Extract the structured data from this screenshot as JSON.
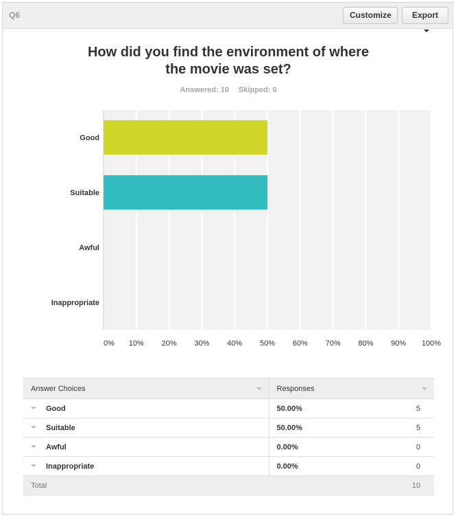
{
  "question": {
    "number": "Q6",
    "title_lines": [
      "How did you find the environment of where",
      "the movie was set?"
    ],
    "answered": "Answered: 10",
    "skipped": "Skipped: 0"
  },
  "toolbar": {
    "customize_label": "Customize",
    "export_label": "Export"
  },
  "chart_data": {
    "type": "bar",
    "orientation": "horizontal",
    "categories": [
      "Good",
      "Suitable",
      "Awful",
      "Inappropriate"
    ],
    "values": [
      50,
      50,
      0,
      0
    ],
    "colors": [
      "#d1d52a",
      "#33bdc0",
      "#f36f24",
      "#8a5ba8"
    ],
    "x_ticks": [
      "0%",
      "10%",
      "20%",
      "30%",
      "40%",
      "50%",
      "60%",
      "70%",
      "80%",
      "90%",
      "100%"
    ],
    "xlim": [
      0,
      100
    ],
    "grid": true
  },
  "table": {
    "headers": [
      "Answer Choices",
      "Responses"
    ],
    "rows": [
      {
        "choice": "Good",
        "percent": "50.00%",
        "count": "5"
      },
      {
        "choice": "Suitable",
        "percent": "50.00%",
        "count": "5"
      },
      {
        "choice": "Awful",
        "percent": "0.00%",
        "count": "0"
      },
      {
        "choice": "Inappropriate",
        "percent": "0.00%",
        "count": "0"
      }
    ],
    "total_label": "Total",
    "total_value": "10"
  }
}
